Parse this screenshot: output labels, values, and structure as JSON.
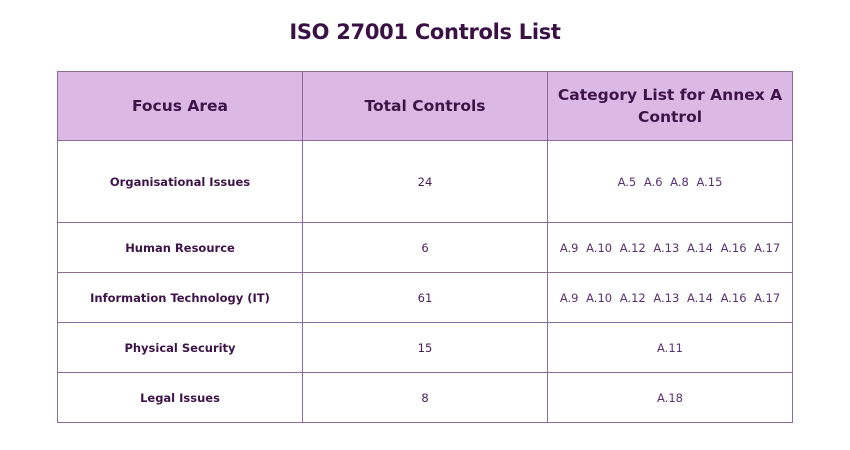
{
  "title": "ISO 27001 Controls List",
  "table": {
    "headers": [
      "Focus Area",
      "Total Controls",
      "Category List for Annex A Control"
    ],
    "rows": [
      {
        "focus_area": "Organisational Issues",
        "total_controls": "24",
        "categories": "A.5  A.6  A.8  A.15"
      },
      {
        "focus_area": "Human Resource",
        "total_controls": "6",
        "categories": "A.9  A.10  A.12  A.13  A.14  A.16  A.17"
      },
      {
        "focus_area": "Information Technology (IT)",
        "total_controls": "61",
        "categories": "A.9  A.10  A.12  A.13  A.14  A.16  A.17"
      },
      {
        "focus_area": "Physical Security",
        "total_controls": "15",
        "categories": "A.11"
      },
      {
        "focus_area": "Legal Issues",
        "total_controls": "8",
        "categories": "A.18"
      }
    ]
  },
  "colors": {
    "header_bg": "#dcb8e4",
    "title": "#3b1145",
    "border": "#8c6b99"
  }
}
